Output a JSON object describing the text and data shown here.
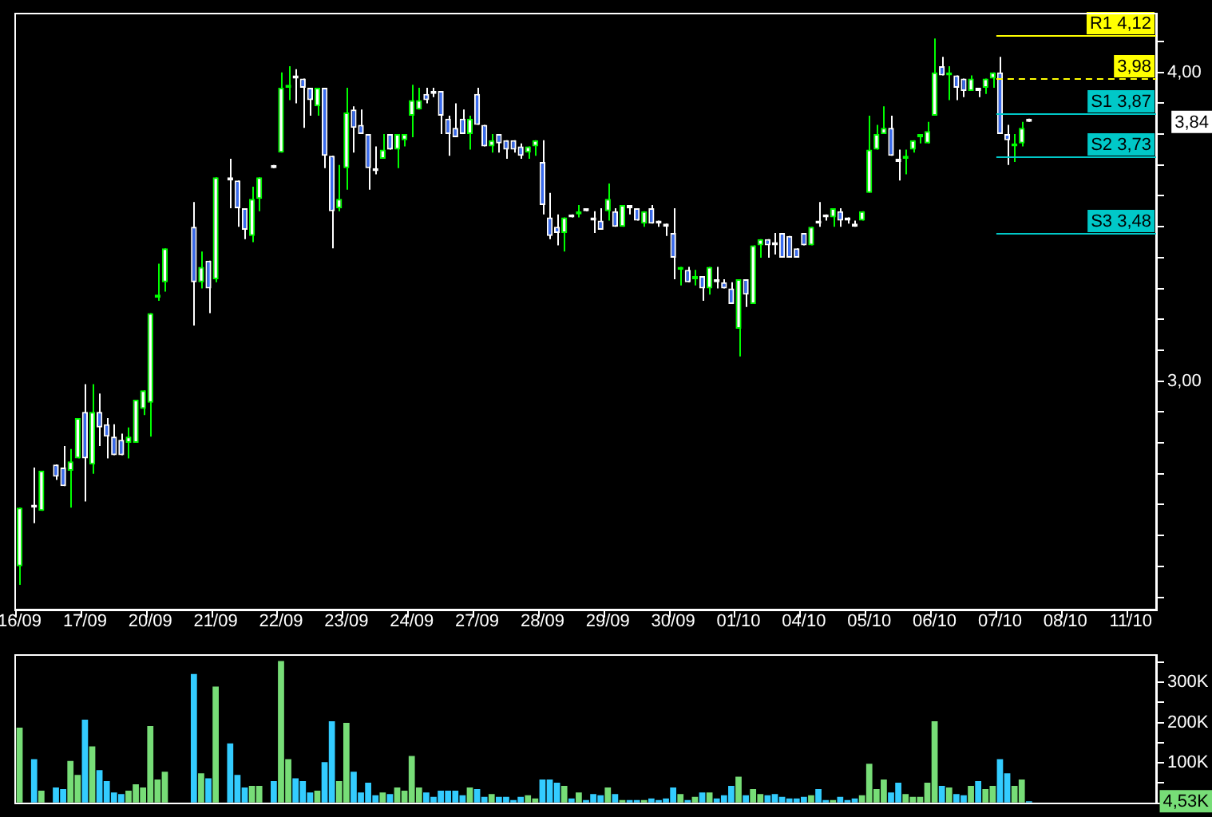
{
  "chart_data": [
    {
      "type": "candlestick",
      "categories": [
        "16/09",
        null,
        null,
        null,
        null,
        null,
        null,
        null,
        null,
        "17/09",
        null,
        null,
        null,
        null,
        null,
        null,
        null,
        null,
        "20/09",
        null,
        null,
        null,
        null,
        null,
        null,
        null,
        null,
        "21/09",
        null,
        null,
        null,
        null,
        null,
        null,
        null,
        null,
        "22/09",
        null,
        null,
        null,
        null,
        null,
        null,
        null,
        null,
        "23/09",
        null,
        null,
        null,
        null,
        null,
        null,
        null,
        null,
        "24/09",
        null,
        null,
        null,
        null,
        null,
        null,
        null,
        null,
        "27/09",
        null,
        null,
        null,
        null,
        null,
        null,
        null,
        null,
        "28/09",
        null,
        null,
        null,
        null,
        null,
        null,
        null,
        null,
        "29/09",
        null,
        null,
        null,
        null,
        null,
        null,
        null,
        null,
        "30/09",
        null,
        null,
        null,
        null,
        null,
        null,
        null,
        null,
        "01/10",
        null,
        null,
        null,
        null,
        null,
        null,
        null,
        null,
        "04/10",
        null,
        null,
        null,
        null,
        null,
        null,
        null,
        null,
        "05/10",
        null,
        null,
        null,
        null,
        null,
        null,
        null,
        null,
        "06/10",
        null,
        null,
        null,
        null,
        null,
        null,
        null,
        null,
        "07/10",
        null,
        null,
        null,
        null,
        null,
        null,
        null,
        null,
        "08/10",
        null,
        null,
        null,
        null,
        null,
        null,
        null,
        null,
        "11/10",
        null,
        null,
        null
      ],
      "ohlc": [
        [
          2.4,
          2.59,
          2.34,
          2.59
        ],
        null,
        [
          2.6,
          2.72,
          2.54,
          2.59
        ],
        [
          2.58,
          2.71,
          2.58,
          2.71
        ],
        null,
        [
          2.73,
          2.73,
          2.68,
          2.69
        ],
        [
          2.72,
          2.79,
          2.66,
          2.66
        ],
        [
          2.71,
          2.78,
          2.59,
          2.74
        ],
        [
          2.75,
          2.88,
          2.75,
          2.88
        ],
        [
          2.9,
          2.99,
          2.61,
          2.75
        ],
        [
          2.73,
          2.99,
          2.7,
          2.9
        ],
        [
          2.9,
          2.96,
          2.79,
          2.85
        ],
        [
          2.86,
          2.88,
          2.75,
          2.82
        ],
        [
          2.82,
          2.86,
          2.76,
          2.76
        ],
        [
          2.81,
          2.83,
          2.76,
          2.76
        ],
        [
          2.8,
          2.85,
          2.75,
          2.82
        ],
        [
          2.8,
          2.94,
          2.8,
          2.94
        ],
        [
          2.91,
          2.97,
          2.89,
          2.97
        ],
        [
          2.93,
          3.22,
          2.82,
          3.22
        ],
        [
          3.27,
          3.38,
          3.26,
          3.28
        ],
        [
          3.32,
          3.43,
          3.29,
          3.43
        ],
        null,
        null,
        null,
        [
          3.5,
          3.58,
          3.18,
          3.32
        ],
        [
          3.32,
          3.42,
          3.3,
          3.37
        ],
        [
          3.39,
          3.39,
          3.22,
          3.3
        ],
        [
          3.33,
          3.66,
          3.32,
          3.66
        ],
        null,
        [
          3.66,
          3.72,
          3.56,
          3.65
        ],
        [
          3.65,
          3.65,
          3.5,
          3.56
        ],
        [
          3.56,
          3.56,
          3.46,
          3.49
        ],
        [
          3.47,
          3.63,
          3.45,
          3.59
        ],
        [
          3.59,
          3.66,
          3.55,
          3.66
        ],
        null,
        [
          3.7,
          3.7,
          3.69,
          3.69
        ],
        [
          3.74,
          4.0,
          3.74,
          3.95
        ],
        [
          3.95,
          4.02,
          3.91,
          3.96
        ],
        [
          3.99,
          4.01,
          3.9,
          3.98
        ],
        [
          3.98,
          3.98,
          3.82,
          3.95
        ],
        [
          3.95,
          3.95,
          3.86,
          3.91
        ],
        [
          3.89,
          3.95,
          3.86,
          3.95
        ],
        [
          3.95,
          3.95,
          3.69,
          3.73
        ],
        [
          3.73,
          3.73,
          3.43,
          3.55
        ],
        [
          3.56,
          3.7,
          3.55,
          3.59
        ],
        [
          3.69,
          3.95,
          3.62,
          3.87
        ],
        [
          3.88,
          3.89,
          3.74,
          3.82
        ],
        [
          3.83,
          3.88,
          3.8,
          3.8
        ],
        [
          3.8,
          3.8,
          3.62,
          3.69
        ],
        [
          3.69,
          3.76,
          3.67,
          3.68
        ],
        [
          3.72,
          3.8,
          3.72,
          3.75
        ],
        [
          3.8,
          3.8,
          3.75,
          3.75
        ],
        [
          3.75,
          3.8,
          3.69,
          3.8
        ],
        [
          3.78,
          3.8,
          3.76,
          3.8
        ],
        [
          3.86,
          3.96,
          3.79,
          3.91
        ],
        [
          3.88,
          3.95,
          3.88,
          3.91
        ],
        [
          3.93,
          3.95,
          3.9,
          3.91
        ],
        [
          3.94,
          3.95,
          3.92,
          3.93
        ],
        [
          3.94,
          3.94,
          3.8,
          3.86
        ],
        [
          3.85,
          3.86,
          3.73,
          3.8
        ],
        [
          3.82,
          3.9,
          3.79,
          3.79
        ],
        [
          3.85,
          3.88,
          3.8,
          3.8
        ],
        [
          3.8,
          3.86,
          3.75,
          3.85
        ],
        [
          3.93,
          3.95,
          3.83,
          3.83
        ],
        [
          3.83,
          3.83,
          3.76,
          3.76
        ],
        [
          3.76,
          3.8,
          3.74,
          3.78
        ],
        [
          3.8,
          3.8,
          3.74,
          3.77
        ],
        [
          3.78,
          3.78,
          3.72,
          3.75
        ],
        [
          3.78,
          3.78,
          3.74,
          3.75
        ],
        [
          3.76,
          3.77,
          3.72,
          3.73
        ],
        [
          3.74,
          3.76,
          3.72,
          3.76
        ],
        [
          3.76,
          3.78,
          3.73,
          3.78
        ],
        [
          3.71,
          3.78,
          3.54,
          3.57
        ],
        [
          3.53,
          3.61,
          3.46,
          3.47
        ],
        [
          3.5,
          3.54,
          3.44,
          3.48
        ],
        [
          3.48,
          3.53,
          3.42,
          3.53
        ],
        [
          3.54,
          3.54,
          3.53,
          3.53
        ],
        [
          3.54,
          3.57,
          3.53,
          3.55
        ],
        [
          3.56,
          3.56,
          3.55,
          3.55
        ],
        [
          3.53,
          3.55,
          3.48,
          3.52
        ],
        [
          3.52,
          3.56,
          3.49,
          3.49
        ],
        [
          3.55,
          3.64,
          3.52,
          3.59
        ],
        [
          3.55,
          3.56,
          3.5,
          3.5
        ],
        [
          3.5,
          3.57,
          3.5,
          3.57
        ],
        [
          3.57,
          3.57,
          3.54,
          3.56
        ],
        [
          3.56,
          3.56,
          3.52,
          3.52
        ],
        [
          3.51,
          3.55,
          3.5,
          3.55
        ],
        [
          3.56,
          3.57,
          3.51,
          3.51
        ],
        [
          3.52,
          3.52,
          3.5,
          3.51
        ],
        [
          3.51,
          3.51,
          3.47,
          3.5
        ],
        [
          3.48,
          3.56,
          3.33,
          3.4
        ],
        [
          3.36,
          3.37,
          3.31,
          3.37
        ],
        [
          3.36,
          3.37,
          3.32,
          3.32
        ],
        [
          3.33,
          3.36,
          3.31,
          3.34
        ],
        [
          3.34,
          3.34,
          3.26,
          3.3
        ],
        [
          3.3,
          3.37,
          3.28,
          3.37
        ],
        [
          3.33,
          3.37,
          3.3,
          3.32
        ],
        [
          3.32,
          3.33,
          3.3,
          3.3
        ],
        [
          3.3,
          3.32,
          3.25,
          3.25
        ],
        [
          3.17,
          3.33,
          3.08,
          3.33
        ],
        [
          3.33,
          3.33,
          3.24,
          3.28
        ],
        [
          3.25,
          3.44,
          3.25,
          3.44
        ],
        [
          3.44,
          3.46,
          3.4,
          3.46
        ],
        [
          3.46,
          3.46,
          3.4,
          3.44
        ],
        [
          3.45,
          3.48,
          3.41,
          3.44
        ],
        [
          3.48,
          3.48,
          3.4,
          3.4
        ],
        [
          3.47,
          3.47,
          3.4,
          3.4
        ],
        [
          3.43,
          3.43,
          3.4,
          3.4
        ],
        [
          3.48,
          3.48,
          3.44,
          3.44
        ],
        [
          3.44,
          3.5,
          3.44,
          3.5
        ],
        [
          3.52,
          3.58,
          3.5,
          3.51
        ],
        [
          3.54,
          3.54,
          3.52,
          3.53
        ],
        [
          3.53,
          3.56,
          3.5,
          3.56
        ],
        [
          3.55,
          3.56,
          3.5,
          3.52
        ],
        [
          3.53,
          3.53,
          3.51,
          3.52
        ],
        [
          3.51,
          3.52,
          3.5,
          3.5
        ],
        [
          3.52,
          3.55,
          3.52,
          3.55
        ],
        [
          3.61,
          3.86,
          3.61,
          3.75
        ],
        [
          3.75,
          3.83,
          3.75,
          3.8
        ],
        [
          3.8,
          3.89,
          3.8,
          3.82
        ],
        [
          3.82,
          3.86,
          3.73,
          3.73
        ],
        [
          3.72,
          3.75,
          3.65,
          3.71
        ],
        [
          3.72,
          3.75,
          3.67,
          3.73
        ],
        [
          3.75,
          3.78,
          3.74,
          3.78
        ],
        [
          3.79,
          3.8,
          3.77,
          3.8
        ],
        [
          3.77,
          3.84,
          3.77,
          3.81
        ],
        [
          3.86,
          4.11,
          3.86,
          4.0
        ],
        [
          4.02,
          4.05,
          3.99,
          3.99
        ],
        [
          3.99,
          4.02,
          3.91,
          4.0
        ],
        [
          3.99,
          3.99,
          3.91,
          3.95
        ],
        [
          3.98,
          3.98,
          3.92,
          3.94
        ],
        [
          3.94,
          3.99,
          3.94,
          3.98
        ],
        [
          3.95,
          3.95,
          3.92,
          3.94
        ],
        [
          3.95,
          3.98,
          3.93,
          3.98
        ],
        [
          3.98,
          4.0,
          3.95,
          4.0
        ],
        [
          4.0,
          4.05,
          3.8,
          3.8
        ],
        [
          3.8,
          3.83,
          3.7,
          3.78
        ],
        [
          3.76,
          3.8,
          3.71,
          3.77
        ],
        [
          3.77,
          3.84,
          3.76,
          3.82
        ],
        [
          3.85,
          3.85,
          3.84,
          3.84
        ],
        null,
        null,
        null,
        null,
        null,
        null,
        null,
        null,
        null,
        null,
        null,
        null,
        null,
        null,
        null,
        null,
        null
      ],
      "ylim": [
        2.26,
        4.19
      ],
      "yticks": [
        {
          "value": 2.3,
          "label": null
        },
        {
          "value": 2.4,
          "label": null
        },
        {
          "value": 2.5,
          "label": null
        },
        {
          "value": 2.6,
          "label": null
        },
        {
          "value": 2.7,
          "label": null
        },
        {
          "value": 2.8,
          "label": null
        },
        {
          "value": 2.9,
          "label": null
        },
        {
          "value": 3,
          "label": "3,00"
        },
        {
          "value": 3.1,
          "label": null
        },
        {
          "value": 3.2,
          "label": null
        },
        {
          "value": 3.3,
          "label": null
        },
        {
          "value": 3.4,
          "label": null
        },
        {
          "value": 3.5,
          "label": null
        },
        {
          "value": 3.6,
          "label": null
        },
        {
          "value": 3.7,
          "label": null
        },
        {
          "value": 3.8,
          "label": null
        },
        {
          "value": 3.9,
          "label": null
        },
        {
          "value": 4,
          "label": "4,00"
        },
        {
          "value": 4.1,
          "label": null
        }
      ],
      "ref_lines": [
        {
          "axis": "y",
          "value": 4.12,
          "label": "R1 4,12",
          "color": "#ffff00"
        },
        {
          "axis": "y",
          "value": 3.98,
          "label": "3,98",
          "color": "#ffff00",
          "line_style": "dashed"
        },
        {
          "axis": "y",
          "value": 3.87,
          "label": "S1 3,87",
          "color": "#00c8c8"
        },
        {
          "axis": "y",
          "value": 3.73,
          "label": "S2 3,73",
          "color": "#00c8c8"
        },
        {
          "axis": "y",
          "value": 3.48,
          "label": "S3 3,48",
          "color": "#00c8c8"
        }
      ],
      "annotations": [
        "3,84"
      ]
    },
    {
      "type": "bar",
      "categories": [
        null,
        null,
        null,
        null,
        null,
        null,
        null,
        null,
        null,
        null,
        null,
        null,
        null,
        null,
        null,
        null,
        null,
        null,
        null,
        null,
        null,
        null,
        null,
        null,
        null,
        null,
        null,
        null,
        null,
        null,
        null,
        null,
        null,
        null,
        null,
        null,
        null,
        null,
        null,
        null,
        null,
        null,
        null,
        null,
        null,
        null,
        null,
        null,
        null,
        null,
        null,
        null,
        null,
        null,
        null,
        null,
        null,
        null,
        null,
        null,
        null,
        null,
        null,
        null,
        null,
        null,
        null,
        null,
        null,
        null,
        null,
        null,
        null,
        null,
        null,
        null,
        null,
        null,
        null,
        null,
        null,
        null,
        null,
        null,
        null,
        null,
        null,
        null,
        null,
        null,
        null,
        null,
        null,
        null,
        null,
        null,
        null,
        null,
        null,
        null,
        null,
        null,
        null,
        null,
        null,
        null,
        null,
        null,
        null,
        null,
        null,
        null,
        null,
        null,
        null,
        null,
        null,
        null,
        null,
        null,
        null,
        null,
        null,
        null,
        null,
        null,
        null,
        null,
        null,
        null,
        null,
        null,
        null,
        null,
        null,
        null,
        null,
        null,
        null,
        null,
        null,
        null,
        null,
        null,
        null,
        null,
        null,
        null,
        null,
        null,
        null,
        null,
        null,
        null,
        null,
        null,
        null
      ],
      "values": [
        187000,
        null,
        109000,
        31000,
        null,
        39000,
        35000,
        105000,
        70000,
        207000,
        141000,
        82000,
        55000,
        27000,
        23000,
        31000,
        47000,
        39000,
        191000,
        59000,
        78000,
        null,
        null,
        null,
        320000,
        74000,
        62000,
        289000,
        null,
        148000,
        70000,
        39000,
        43000,
        43000,
        null,
        55000,
        352000,
        109000,
        62000,
        55000,
        27000,
        31000,
        102000,
        203000,
        55000,
        199000,
        78000,
        27000,
        51000,
        20000,
        27000,
        23000,
        39000,
        31000,
        117000,
        39000,
        27000,
        16000,
        31000,
        31000,
        31000,
        20000,
        39000,
        35000,
        16000,
        23000,
        16000,
        16000,
        8000,
        16000,
        20000,
        12000,
        59000,
        59000,
        51000,
        43000,
        12000,
        27000,
        8000,
        23000,
        20000,
        39000,
        23000,
        8000,
        8000,
        8000,
        8000,
        12000,
        8000,
        12000,
        39000,
        23000,
        8000,
        16000,
        27000,
        27000,
        12000,
        20000,
        43000,
        66000,
        20000,
        35000,
        23000,
        20000,
        23000,
        16000,
        12000,
        12000,
        16000,
        20000,
        35000,
        8000,
        8000,
        16000,
        8000,
        12000,
        20000,
        98000,
        35000,
        59000,
        27000,
        51000,
        23000,
        16000,
        16000,
        51000,
        203000,
        43000,
        39000,
        23000,
        20000,
        43000,
        55000,
        35000,
        43000,
        109000,
        74000,
        43000,
        59000,
        5000,
        null,
        null,
        null,
        null,
        null,
        null,
        null,
        null,
        null,
        null,
        null,
        null,
        null,
        null,
        null,
        null,
        null
      ],
      "colors": [
        "#77dd77",
        null,
        "#33ccff",
        "#77dd77",
        null,
        "#33ccff",
        "#33ccff",
        "#77dd77",
        "#77dd77",
        "#33ccff",
        "#77dd77",
        "#33ccff",
        "#33ccff",
        "#33ccff",
        "#33ccff",
        "#77dd77",
        "#77dd77",
        "#77dd77",
        "#77dd77",
        "#77dd77",
        "#77dd77",
        null,
        null,
        null,
        "#33ccff",
        "#77dd77",
        "#33ccff",
        "#77dd77",
        null,
        "#33ccff",
        "#33ccff",
        "#33ccff",
        "#77dd77",
        "#77dd77",
        null,
        "#33ccff",
        "#77dd77",
        "#77dd77",
        "#33ccff",
        "#33ccff",
        "#33ccff",
        "#77dd77",
        "#33ccff",
        "#33ccff",
        "#77dd77",
        "#77dd77",
        "#33ccff",
        "#33ccff",
        "#33ccff",
        "#33ccff",
        "#77dd77",
        "#33ccff",
        "#77dd77",
        "#77dd77",
        "#77dd77",
        "#77dd77",
        "#33ccff",
        "#33ccff",
        "#33ccff",
        "#33ccff",
        "#33ccff",
        "#33ccff",
        "#77dd77",
        "#33ccff",
        "#33ccff",
        "#77dd77",
        "#33ccff",
        "#33ccff",
        "#33ccff",
        "#33ccff",
        "#77dd77",
        "#77dd77",
        "#33ccff",
        "#33ccff",
        "#33ccff",
        "#77dd77",
        "#33ccff",
        "#77dd77",
        "#33ccff",
        "#33ccff",
        "#33ccff",
        "#77dd77",
        "#33ccff",
        "#77dd77",
        "#33ccff",
        "#33ccff",
        "#77dd77",
        "#33ccff",
        "#33ccff",
        "#33ccff",
        "#33ccff",
        "#77dd77",
        "#33ccff",
        "#77dd77",
        "#33ccff",
        "#77dd77",
        "#33ccff",
        "#33ccff",
        "#33ccff",
        "#77dd77",
        "#33ccff",
        "#77dd77",
        "#77dd77",
        "#33ccff",
        "#33ccff",
        "#33ccff",
        "#33ccff",
        "#33ccff",
        "#33ccff",
        "#77dd77",
        "#33ccff",
        "#33ccff",
        "#77dd77",
        "#33ccff",
        "#33ccff",
        "#33ccff",
        "#77dd77",
        "#77dd77",
        "#77dd77",
        "#77dd77",
        "#33ccff",
        "#33ccff",
        "#77dd77",
        "#77dd77",
        "#77dd77",
        "#77dd77",
        "#77dd77",
        "#33ccff",
        "#77dd77",
        "#33ccff",
        "#33ccff",
        "#77dd77",
        "#33ccff",
        "#77dd77",
        "#77dd77",
        "#33ccff",
        "#33ccff",
        "#77dd77",
        "#77dd77",
        "#33ccff",
        null,
        null,
        null,
        null,
        null,
        null,
        null,
        null,
        null,
        null,
        null,
        null,
        null,
        null,
        null,
        null,
        null
      ],
      "ylim": [
        0,
        365000
      ],
      "yticks": [
        {
          "value": 0,
          "label": null
        },
        {
          "value": 50000,
          "label": null
        },
        {
          "value": 100000,
          "label": "100K"
        },
        {
          "value": 150000,
          "label": null
        },
        {
          "value": 200000,
          "label": "200K"
        },
        {
          "value": 250000,
          "label": null
        },
        {
          "value": 300000,
          "label": "300K"
        },
        {
          "value": 350000,
          "label": null
        }
      ],
      "annotations": [
        "4,53K"
      ]
    }
  ]
}
